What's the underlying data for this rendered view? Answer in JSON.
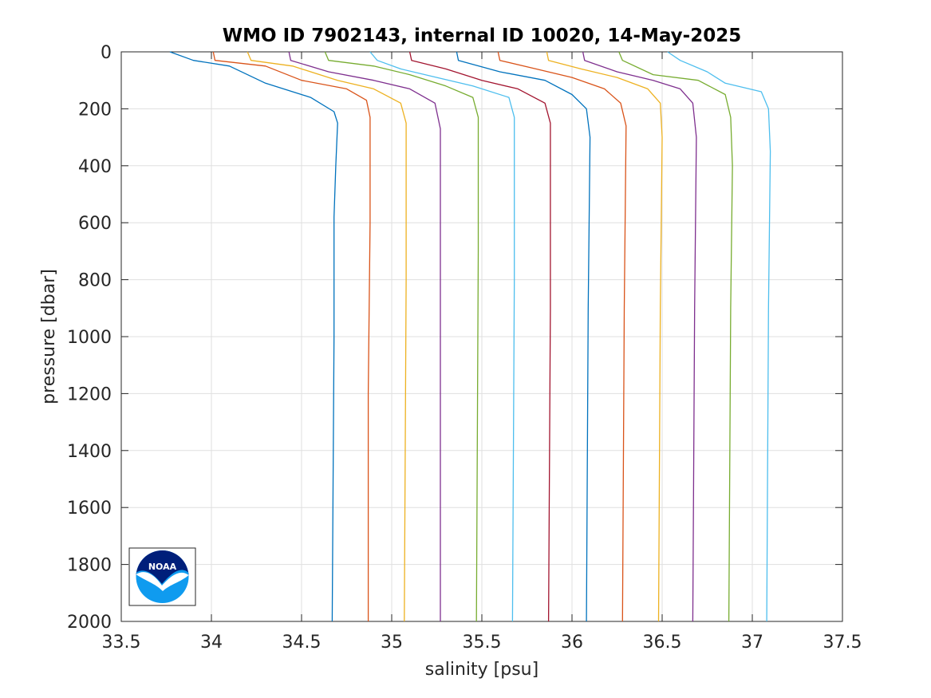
{
  "chart_data": {
    "type": "line",
    "title": "WMO ID 7902143, internal ID 10020, 14-May-2025",
    "xlabel": "salinity [psu]",
    "ylabel": "pressure [dbar]",
    "xlim": [
      33.5,
      37.5
    ],
    "ylim": [
      0,
      2000
    ],
    "y_reversed": true,
    "grid": true,
    "xticks": [
      33.5,
      34,
      34.5,
      35,
      35.5,
      36,
      36.5,
      37,
      37.5
    ],
    "xtick_labels": [
      "33.5",
      "34",
      "34.5",
      "35",
      "35.5",
      "36",
      "36.5",
      "37",
      "37.5"
    ],
    "yticks": [
      0,
      200,
      400,
      600,
      800,
      1000,
      1200,
      1400,
      1600,
      1800,
      2000
    ],
    "ytick_labels": [
      "0",
      "200",
      "400",
      "600",
      "800",
      "1000",
      "1200",
      "1400",
      "1600",
      "1800",
      "2000"
    ],
    "note_offset": "each successive profile is shifted +0.2 psu to the right",
    "series": [
      {
        "color": "#0072bd",
        "points": [
          [
            33.77,
            0
          ],
          [
            33.9,
            30
          ],
          [
            34.1,
            50
          ],
          [
            34.3,
            110
          ],
          [
            34.55,
            160
          ],
          [
            34.68,
            210
          ],
          [
            34.7,
            250
          ],
          [
            34.69,
            400
          ],
          [
            34.68,
            580
          ],
          [
            34.68,
            1000
          ],
          [
            34.67,
            2000
          ]
        ]
      },
      {
        "color": "#d95319",
        "points": [
          [
            34.01,
            0
          ],
          [
            34.02,
            30
          ],
          [
            34.3,
            50
          ],
          [
            34.5,
            100
          ],
          [
            34.75,
            130
          ],
          [
            34.86,
            170
          ],
          [
            34.88,
            230
          ],
          [
            34.88,
            600
          ],
          [
            34.87,
            1200
          ],
          [
            34.87,
            2000
          ]
        ]
      },
      {
        "color": "#edb120",
        "points": [
          [
            34.2,
            0
          ],
          [
            34.22,
            30
          ],
          [
            34.45,
            50
          ],
          [
            34.7,
            100
          ],
          [
            34.9,
            130
          ],
          [
            35.05,
            180
          ],
          [
            35.08,
            250
          ],
          [
            35.08,
            800
          ],
          [
            35.07,
            2000
          ]
        ]
      },
      {
        "color": "#7e2f8e",
        "points": [
          [
            34.43,
            0
          ],
          [
            34.44,
            30
          ],
          [
            34.65,
            70
          ],
          [
            34.9,
            100
          ],
          [
            35.1,
            130
          ],
          [
            35.24,
            180
          ],
          [
            35.27,
            270
          ],
          [
            35.27,
            900
          ],
          [
            35.27,
            2000
          ]
        ]
      },
      {
        "color": "#77ac30",
        "points": [
          [
            34.63,
            0
          ],
          [
            34.65,
            30
          ],
          [
            34.9,
            50
          ],
          [
            35.1,
            80
          ],
          [
            35.3,
            120
          ],
          [
            35.45,
            160
          ],
          [
            35.48,
            230
          ],
          [
            35.48,
            700
          ],
          [
            35.47,
            2000
          ]
        ]
      },
      {
        "color": "#4dbeee",
        "points": [
          [
            34.88,
            0
          ],
          [
            34.92,
            30
          ],
          [
            35.05,
            60
          ],
          [
            35.25,
            90
          ],
          [
            35.45,
            120
          ],
          [
            35.65,
            160
          ],
          [
            35.68,
            230
          ],
          [
            35.68,
            800
          ],
          [
            35.67,
            2000
          ]
        ]
      },
      {
        "color": "#a2142f",
        "points": [
          [
            35.1,
            0
          ],
          [
            35.11,
            30
          ],
          [
            35.3,
            60
          ],
          [
            35.5,
            100
          ],
          [
            35.7,
            130
          ],
          [
            35.85,
            180
          ],
          [
            35.88,
            250
          ],
          [
            35.88,
            900
          ],
          [
            35.87,
            2000
          ]
        ]
      },
      {
        "color": "#0072bd",
        "points": [
          [
            35.36,
            0
          ],
          [
            35.37,
            30
          ],
          [
            35.6,
            70
          ],
          [
            35.85,
            100
          ],
          [
            36.0,
            150
          ],
          [
            36.08,
            200
          ],
          [
            36.1,
            300
          ],
          [
            36.09,
            900
          ],
          [
            36.08,
            2000
          ]
        ]
      },
      {
        "color": "#d95319",
        "points": [
          [
            35.59,
            0
          ],
          [
            35.6,
            30
          ],
          [
            35.8,
            60
          ],
          [
            36.0,
            90
          ],
          [
            36.18,
            130
          ],
          [
            36.27,
            180
          ],
          [
            36.3,
            260
          ],
          [
            36.29,
            900
          ],
          [
            36.28,
            2000
          ]
        ]
      },
      {
        "color": "#edb120",
        "points": [
          [
            35.86,
            0
          ],
          [
            35.87,
            30
          ],
          [
            36.05,
            60
          ],
          [
            36.25,
            90
          ],
          [
            36.42,
            130
          ],
          [
            36.49,
            180
          ],
          [
            36.5,
            300
          ],
          [
            36.49,
            900
          ],
          [
            36.48,
            2000
          ]
        ]
      },
      {
        "color": "#7e2f8e",
        "points": [
          [
            36.06,
            0
          ],
          [
            36.07,
            30
          ],
          [
            36.25,
            70
          ],
          [
            36.45,
            100
          ],
          [
            36.6,
            130
          ],
          [
            36.67,
            180
          ],
          [
            36.69,
            300
          ],
          [
            36.68,
            900
          ],
          [
            36.67,
            2000
          ]
        ]
      },
      {
        "color": "#77ac30",
        "points": [
          [
            36.26,
            0
          ],
          [
            36.28,
            30
          ],
          [
            36.45,
            80
          ],
          [
            36.7,
            100
          ],
          [
            36.85,
            150
          ],
          [
            36.88,
            230
          ],
          [
            36.89,
            400
          ],
          [
            36.88,
            900
          ],
          [
            36.87,
            2000
          ]
        ]
      },
      {
        "color": "#4dbeee",
        "points": [
          [
            36.53,
            0
          ],
          [
            36.6,
            30
          ],
          [
            36.75,
            70
          ],
          [
            36.85,
            110
          ],
          [
            37.05,
            140
          ],
          [
            37.09,
            200
          ],
          [
            37.1,
            350
          ],
          [
            37.09,
            900
          ],
          [
            37.08,
            2000
          ]
        ]
      }
    ]
  },
  "logo": {
    "text": "NOAA",
    "name": "noaa-logo"
  }
}
